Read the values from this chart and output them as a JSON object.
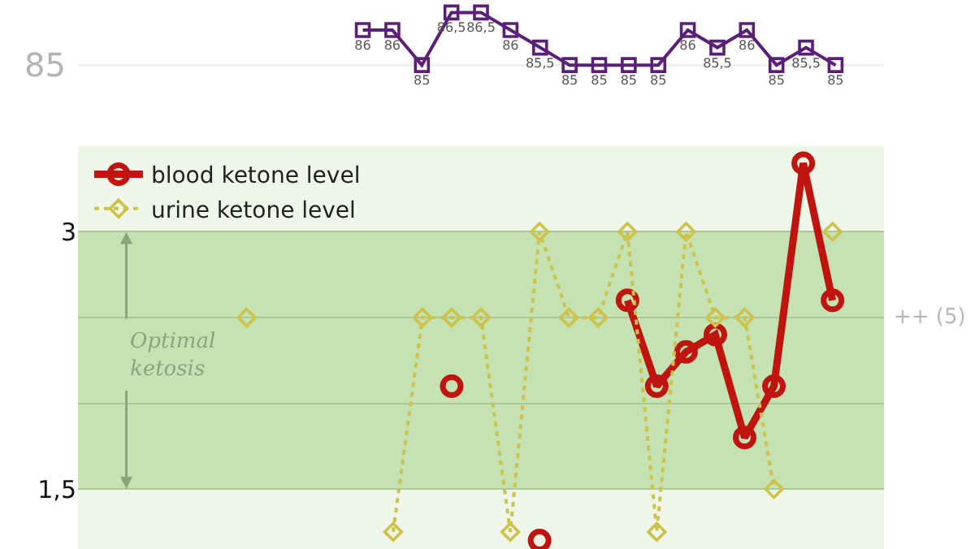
{
  "chart_data": [
    {
      "type": "line",
      "categories": [
        null,
        null,
        null,
        null,
        null,
        null,
        null,
        null,
        null,
        null,
        null,
        null,
        null,
        null,
        null,
        null,
        null,
        null,
        null,
        null,
        null,
        null,
        null,
        null,
        null
      ],
      "series": [
        {
          "color": "#5b1f7a",
          "marker": "square",
          "line_style": "solid",
          "values": [
            null,
            null,
            null,
            null,
            null,
            null,
            null,
            null,
            86,
            86,
            85,
            86.5,
            86.5,
            86,
            85.5,
            85,
            85,
            85,
            85,
            86,
            85.5,
            86,
            85,
            85.5,
            85
          ],
          "value_labels": [
            null,
            null,
            null,
            null,
            null,
            null,
            null,
            null,
            "86",
            "86",
            "85",
            "86,5",
            "86,5",
            "86",
            "85,5",
            "85",
            "85",
            "85",
            "85",
            "86",
            "85,5",
            "86",
            "85",
            "85,5",
            "85"
          ]
        }
      ],
      "tick_labels": false,
      "ref_lines": [
        {
          "axis": "y",
          "value": 85,
          "label": "85",
          "color": "#eeeeee"
        }
      ]
    },
    {
      "type": "line",
      "categories": [
        null,
        null,
        null,
        null,
        null,
        null,
        null,
        null,
        null,
        null,
        null,
        null,
        null,
        null,
        null,
        null,
        null,
        null,
        null,
        null,
        null,
        null,
        null,
        null,
        null
      ],
      "series": [
        {
          "name": "blood ketone level",
          "color": "#c0150f",
          "marker": "circle",
          "line_style": "solid",
          "values": [
            null,
            null,
            null,
            null,
            null,
            null,
            null,
            null,
            null,
            null,
            null,
            2.1,
            null,
            null,
            1.2,
            null,
            null,
            2.6,
            2.1,
            2.3,
            2.4,
            1.8,
            2.1,
            3.4,
            2.6
          ]
        },
        {
          "name": "urine ketone level",
          "color": "#cfc24a",
          "marker": "diamond",
          "line_style": "dotted",
          "values": [
            null,
            null,
            null,
            null,
            2.5,
            null,
            null,
            null,
            null,
            1.25,
            2.5,
            2.5,
            2.5,
            1.25,
            3,
            2.5,
            2.5,
            3,
            1.25,
            3,
            2.5,
            2.5,
            1.5,
            null,
            3
          ]
        }
      ],
      "ylim": [
        1.15,
        3.5
      ],
      "yticks": [
        {
          "value": 1.5,
          "label": "1,5"
        },
        {
          "value": 2,
          "label": null
        },
        {
          "value": 2.5,
          "label": null
        },
        {
          "value": 3,
          "label": "3"
        }
      ],
      "grid": "y",
      "tick_labels": "y",
      "legend": "top left",
      "bands": [
        {
          "axis": "y",
          "from": 1.5,
          "to": 3,
          "label": "Optimal ketosis",
          "color": "#c4e2b2"
        }
      ],
      "annotations": [
        "++ (5)"
      ]
    }
  ]
}
